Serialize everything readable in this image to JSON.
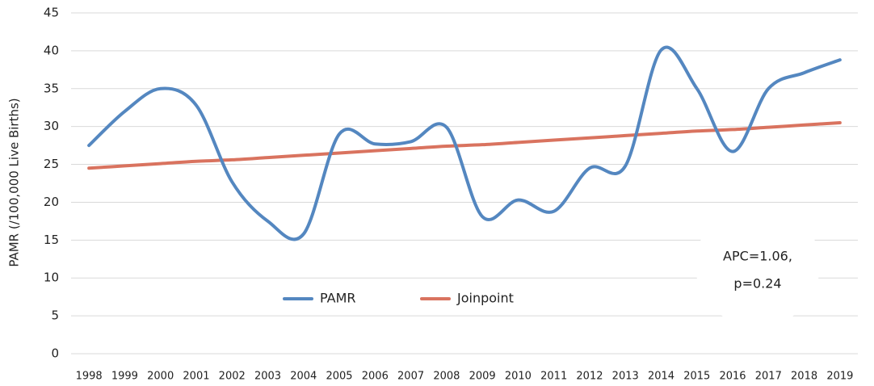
{
  "chart_data": {
    "type": "line",
    "y_label": "PAMR (/100,000 Live Births)",
    "categories": [
      "1998",
      "1999",
      "2000",
      "2001",
      "2002",
      "2003",
      "2004",
      "2005",
      "2006",
      "2007",
      "2008",
      "2009",
      "2010",
      "2011",
      "2012",
      "2013",
      "2014",
      "2015",
      "2016",
      "2017",
      "2018",
      "2019"
    ],
    "series": [
      {
        "name": "PAMR",
        "color": "#5487c0",
        "values": [
          27.5,
          32,
          35,
          32.8,
          22.7,
          17.5,
          15.8,
          29,
          27.7,
          28,
          29.9,
          18.1,
          20.3,
          18.8,
          24.5,
          24.8,
          40.1,
          35,
          26.7,
          35,
          37.1,
          38.8
        ]
      },
      {
        "name": "Joinpoint",
        "color": "#d9735f",
        "values": [
          24.5,
          24.8,
          25.1,
          25.4,
          25.6,
          25.9,
          26.2,
          26.5,
          26.8,
          27.1,
          27.4,
          27.6,
          27.9,
          28.2,
          28.5,
          28.8,
          29.1,
          29.4,
          29.6,
          29.9,
          30.2,
          30.5
        ]
      }
    ],
    "annotation": [
      "APC=1.06,",
      "p=0.24"
    ],
    "ylim": [
      0,
      45
    ],
    "yticks": [
      0,
      5,
      10,
      15,
      20,
      25,
      30,
      35,
      40,
      45
    ],
    "grid": true
  }
}
